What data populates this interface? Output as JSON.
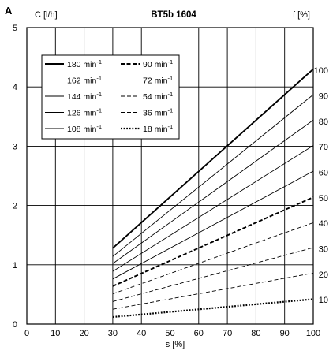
{
  "chart_data": {
    "type": "line",
    "panel_label": "A",
    "title": "BT5b 1604",
    "ylabel": "C [l/h]",
    "y2label": "f [%]",
    "xlabel": "s [%]",
    "xlim": [
      0,
      100
    ],
    "ylim": [
      0,
      5
    ],
    "x_ticks": [
      "0",
      "10",
      "20",
      "30",
      "40",
      "50",
      "60",
      "70",
      "80",
      "90",
      "100"
    ],
    "y_ticks": [
      "0",
      "1",
      "2",
      "3",
      "4",
      "5"
    ],
    "y2_ticks": [
      {
        "label": "10",
        "y": 0.41
      },
      {
        "label": "20",
        "y": 0.84
      },
      {
        "label": "30",
        "y": 1.27
      },
      {
        "label": "40",
        "y": 1.7
      },
      {
        "label": "50",
        "y": 2.13
      },
      {
        "label": "60",
        "y": 2.56
      },
      {
        "label": "70",
        "y": 2.99
      },
      {
        "label": "80",
        "y": 3.42
      },
      {
        "label": "90",
        "y": 3.85
      },
      {
        "label": "100",
        "y": 4.28
      }
    ],
    "grid": true,
    "legend_position": "top-left",
    "series": [
      {
        "name": "180 min",
        "style": "solid-bold",
        "x": [
          30,
          100
        ],
        "y": [
          1.28,
          4.3
        ]
      },
      {
        "name": "162 min",
        "style": "solid",
        "x": [
          30,
          100
        ],
        "y": [
          1.14,
          3.87
        ]
      },
      {
        "name": "144 min",
        "style": "solid",
        "x": [
          30,
          100
        ],
        "y": [
          1.02,
          3.44
        ]
      },
      {
        "name": "126 min",
        "style": "solid",
        "x": [
          30,
          100
        ],
        "y": [
          0.89,
          3.01
        ]
      },
      {
        "name": "108 min",
        "style": "solid",
        "x": [
          30,
          100
        ],
        "y": [
          0.76,
          2.58
        ]
      },
      {
        "name": "90 min",
        "style": "dashed-bold",
        "x": [
          30,
          100
        ],
        "y": [
          0.64,
          2.14
        ]
      },
      {
        "name": "72 min",
        "style": "dashed",
        "x": [
          30,
          100
        ],
        "y": [
          0.51,
          1.71
        ]
      },
      {
        "name": "54 min",
        "style": "dashed",
        "x": [
          30,
          100
        ],
        "y": [
          0.38,
          1.29
        ]
      },
      {
        "name": "36 min",
        "style": "dashed",
        "x": [
          30,
          100
        ],
        "y": [
          0.25,
          0.86
        ]
      },
      {
        "name": "18 min",
        "style": "dotted-bold",
        "x": [
          30,
          100
        ],
        "y": [
          0.12,
          0.42
        ]
      }
    ],
    "legend_superscript": "-1"
  },
  "colors": {
    "line": "#000000",
    "background": "#ffffff"
  }
}
